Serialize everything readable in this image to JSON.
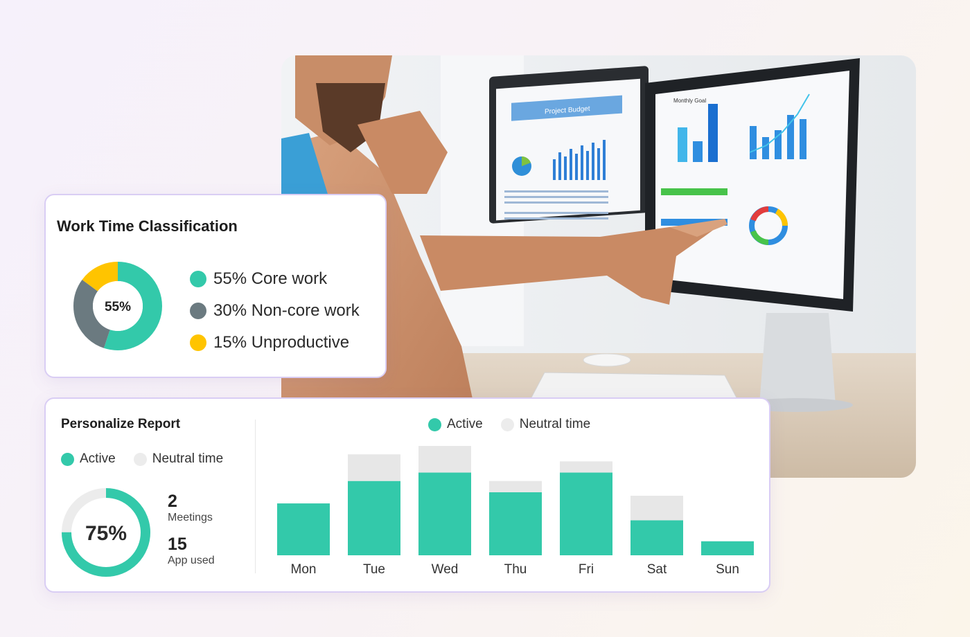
{
  "colors": {
    "active": "#33c9aa",
    "neutral": "#e7e7e7",
    "core": "#33c9aa",
    "non_core": "#6b7a80",
    "unproductive": "#ffc400",
    "card_border": "#d9cdf4"
  },
  "photo": {
    "icon": "person-at-monitors-photo",
    "screen_left_title": "Project Budget",
    "screen_right_title": "Monthly Goal"
  },
  "work_time": {
    "title": "Work Time Classification",
    "center_label": "55%",
    "segments": [
      {
        "label": "55% Core work",
        "value": 55,
        "color": "#33c9aa"
      },
      {
        "label": "30% Non-core work",
        "value": 30,
        "color": "#6b7a80"
      },
      {
        "label": "15% Unproductive",
        "value": 15,
        "color": "#ffc400"
      }
    ]
  },
  "report": {
    "title": "Personalize Report",
    "legend": {
      "active": "Active",
      "neutral": "Neutral time"
    },
    "ring_label": "75%",
    "ring_value": 0.75,
    "meetings_value": "2",
    "meetings_label": "Meetings",
    "apps_value": "15",
    "apps_label": "App used"
  },
  "chart_data": {
    "type": "bar",
    "stacked": true,
    "categories": [
      "Mon",
      "Tue",
      "Wed",
      "Thu",
      "Fri",
      "Sat",
      "Sun"
    ],
    "series": [
      {
        "name": "Active",
        "values": [
          74,
          106,
          118,
          90,
          118,
          50,
          20
        ]
      },
      {
        "name": "Neutral time",
        "values": [
          0,
          38,
          38,
          16,
          16,
          35,
          0
        ]
      }
    ],
    "ylim": [
      0,
      160
    ],
    "legend": "top"
  }
}
